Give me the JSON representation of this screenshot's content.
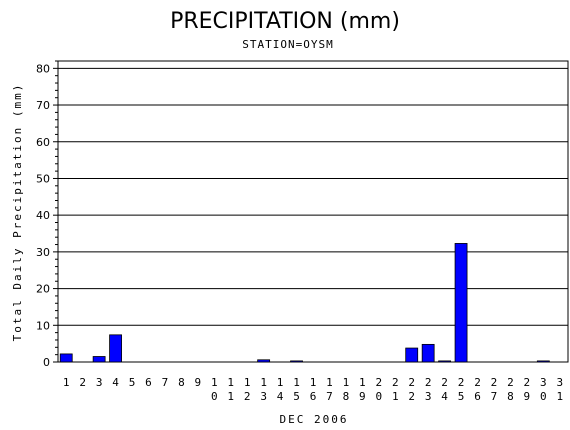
{
  "chart_data": {
    "type": "bar",
    "title": "PRECIPITATION (mm)",
    "subtitle": "STATION=OYSM",
    "xlabel": "DEC 2006",
    "ylabel": "Total Daily Precipitation (mm)",
    "ylim": [
      0,
      82
    ],
    "yticks": [
      0,
      10,
      20,
      30,
      40,
      50,
      60,
      70,
      80
    ],
    "grid": true,
    "bar_color": "#0000ff",
    "categories": [
      "1",
      "2",
      "3",
      "4",
      "5",
      "6",
      "7",
      "8",
      "9",
      "10",
      "11",
      "12",
      "13",
      "14",
      "15",
      "16",
      "17",
      "18",
      "19",
      "20",
      "21",
      "22",
      "23",
      "24",
      "25",
      "26",
      "27",
      "28",
      "29",
      "30",
      "31"
    ],
    "values": [
      2.2,
      0,
      1.5,
      7.4,
      0,
      0,
      0,
      0,
      0,
      0,
      0,
      0,
      0.6,
      0,
      0.3,
      0,
      0,
      0,
      0,
      0,
      0,
      3.8,
      4.8,
      0.3,
      32.3,
      0,
      0,
      0,
      0,
      0.3,
      0
    ]
  }
}
